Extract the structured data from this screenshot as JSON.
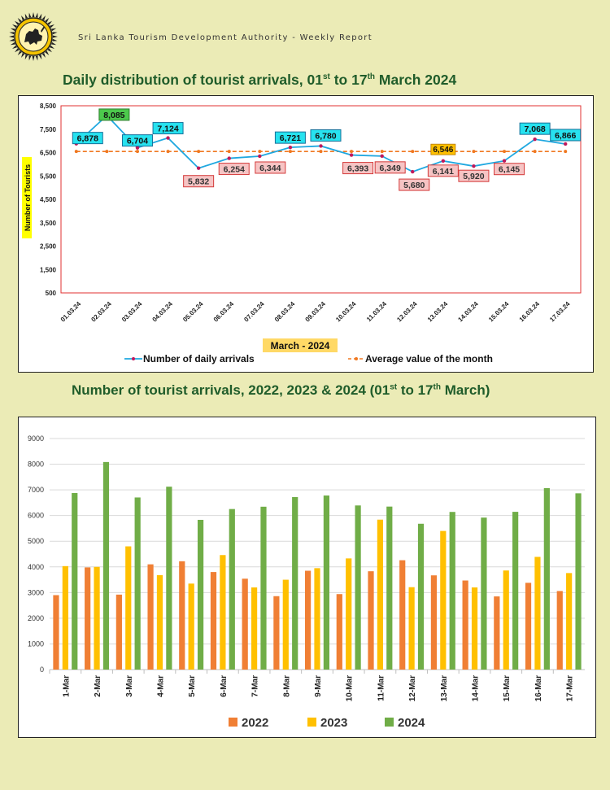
{
  "header": {
    "org_name": "Sri Lanka Tourism Development Authority - Weekly Report",
    "colors": {
      "background": "#ebebb6",
      "title": "#1f5c2a"
    }
  },
  "chart1": {
    "title_part1": "Daily distribution of tourist arrivals, 01",
    "title_sup1": "st",
    "title_part2": " to 17",
    "title_sup2": "th",
    "title_part3": " March 2024"
  },
  "chart2": {
    "title_part1": "Number of tourist arrivals, 2022, 2023 & 2024 (01",
    "title_sup1": "st",
    "title_part2": " to 17",
    "title_sup2": "th",
    "title_part3": " March)"
  },
  "chart_data": [
    {
      "type": "line",
      "title": "Daily distribution of tourist arrivals, 01st to 17th March 2024",
      "xlabel": "March  - 2024",
      "ylabel": "Number of Tourists",
      "ylim": [
        500,
        8500
      ],
      "yticks": [
        "500",
        "1,500",
        "2,500",
        "3,500",
        "4,500",
        "5,500",
        "6,500",
        "7,500",
        "8,500"
      ],
      "categories": [
        "01.03.24",
        "02.03.24",
        "03.03.24",
        "04.03.24",
        "05.03.24",
        "06.03.24",
        "07.03.24",
        "08.03.24",
        "09.03.24",
        "10.03.24",
        "11.03.24",
        "12.03.24",
        "13.03.24",
        "14.03.24",
        "15.03.24",
        "16.03.24",
        "17.03.24"
      ],
      "series": [
        {
          "name": "Number of daily arrivals",
          "color": "#1fa8e0",
          "values": [
            6878,
            8085,
            6704,
            7124,
            5832,
            6254,
            6344,
            6721,
            6780,
            6393,
            6349,
            5680,
            6141,
            5920,
            6145,
            7068,
            6866
          ],
          "labels": [
            "6,878",
            "8,085",
            "6,704",
            "7,124",
            "5,832",
            "6,254",
            "6,344",
            "6,721",
            "6,780",
            "6,393",
            "6,349",
            "5,680",
            "6,141",
            "5,920",
            "6,145",
            "7,068",
            "6,866"
          ]
        },
        {
          "name": "Average value of the month",
          "color": "#f07820",
          "values": [
            6546,
            6546,
            6546,
            6546,
            6546,
            6546,
            6546,
            6546,
            6546,
            6546,
            6546,
            6546,
            6546,
            6546,
            6546,
            6546,
            6546
          ],
          "label": "6,546"
        }
      ]
    },
    {
      "type": "bar",
      "title": "Number of tourist arrivals, 2022, 2023 & 2024 (01st to 17th March)",
      "ylim": [
        0,
        9000
      ],
      "yticks": [
        "0",
        "1000",
        "2000",
        "3000",
        "4000",
        "5000",
        "6000",
        "7000",
        "8000",
        "9000"
      ],
      "categories": [
        "1-Mar",
        "2-Mar",
        "3-Mar",
        "4-Mar",
        "5-Mar",
        "6-Mar",
        "7-Mar",
        "8-Mar",
        "9-Mar",
        "10-Mar",
        "11-Mar",
        "12-Mar",
        "13-Mar",
        "14-Mar",
        "15-Mar",
        "16-Mar",
        "17-Mar"
      ],
      "series": [
        {
          "name": "2022",
          "color": "#f07f34",
          "values": [
            2900,
            3980,
            2920,
            4100,
            4220,
            3800,
            3540,
            2860,
            3850,
            2940,
            3830,
            4260,
            3670,
            3470,
            2850,
            3380,
            3060
          ]
        },
        {
          "name": "2023",
          "color": "#ffc000",
          "values": [
            4030,
            4000,
            4800,
            3680,
            3350,
            4460,
            3200,
            3500,
            3950,
            4330,
            5840,
            3210,
            5400,
            3200,
            3860,
            4390,
            3760
          ]
        },
        {
          "name": "2024",
          "color": "#70ad47",
          "values": [
            6878,
            8085,
            6704,
            7124,
            5832,
            6254,
            6344,
            6721,
            6780,
            6393,
            6349,
            5680,
            6141,
            5920,
            6145,
            7068,
            6866
          ]
        }
      ]
    }
  ]
}
